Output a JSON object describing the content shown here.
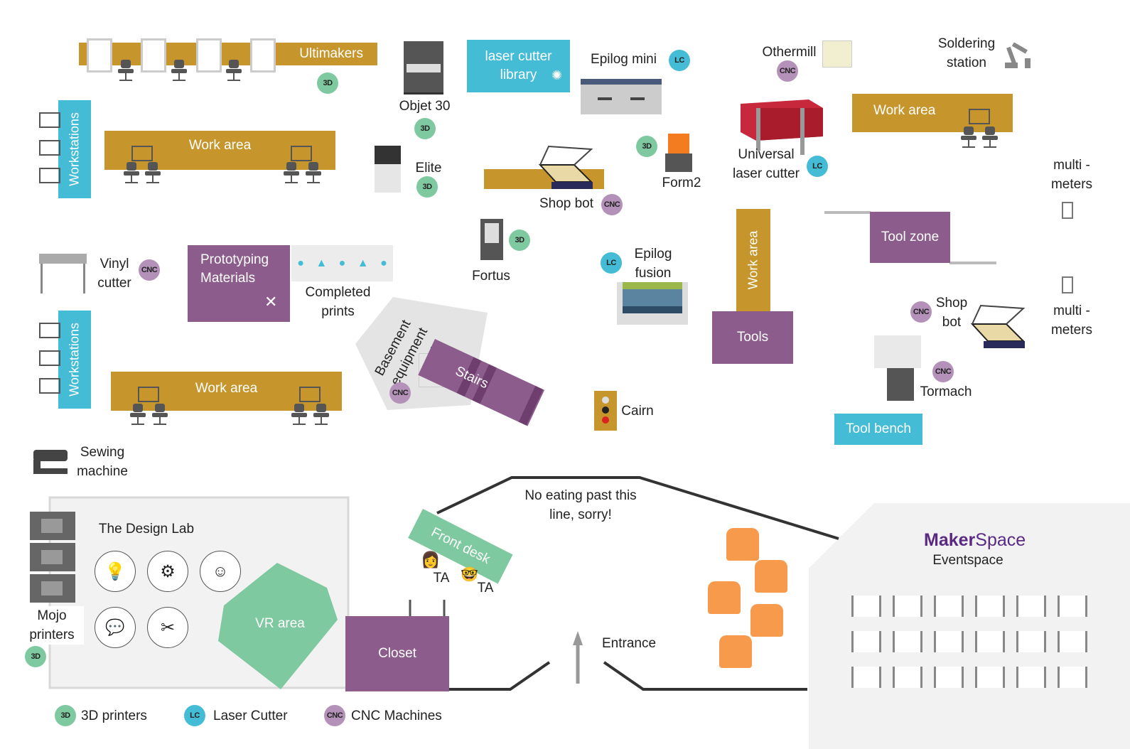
{
  "labels": {
    "ultimakers": "Ultimakers",
    "objet30": "Objet 30",
    "laser_cutter_library": "laser cutter library",
    "epilog_mini": "Epilog mini",
    "othermill": "Othermill",
    "soldering_station": "Soldering station",
    "workstations": "Workstations",
    "work_area": "Work area",
    "elite": "Elite",
    "shop_bot": "Shop bot",
    "form2": "Form2",
    "universal_laser_cutter": "Universal laser cutter",
    "multimeters": "multi - meters",
    "tool_zone": "Tool zone",
    "vinyl_cutter": "Vinyl cutter",
    "prototyping_materials": "Prototyping Materials",
    "completed_prints": "Completed prints",
    "fortus": "Fortus",
    "epilog_fusion": "Epilog fusion",
    "tools": "Tools",
    "basement_equipment": "Basement equipment",
    "stairs": "Stairs",
    "tormach": "Tormach",
    "cairn": "Cairn",
    "tool_bench": "Tool bench",
    "sewing_machine": "Sewing machine",
    "design_lab": "The Design Lab",
    "mojo_printers": "Mojo printers",
    "vr_area": "VR area",
    "front_desk": "Front desk",
    "ta": "TA",
    "no_eating": "No eating past this line, sorry!",
    "closet": "Closet",
    "entrance": "Entrance",
    "makerspace_maker": "Maker",
    "makerspace_space": "Space",
    "eventspace": "Eventspace"
  },
  "badges": {
    "threed": "3D",
    "lc": "LC",
    "cnc": "CNC"
  },
  "legend": {
    "threed": "3D printers",
    "lc": "Laser Cutter",
    "cnc": "CNC Machines"
  },
  "colors": {
    "work_area": "#c6962d",
    "purple_zone": "#8c5c8c",
    "cyan_zone": "#44bcd6",
    "green_zone": "#7ec9a0",
    "badge_3d": "#7ec9a0",
    "badge_lc": "#44bcd6",
    "badge_cnc": "#b491b8",
    "makerspace_brand": "#5a2a82"
  },
  "icons": [
    "chair-icon",
    "monitor-icon",
    "lightbulb-icon",
    "head-gear-icon",
    "people-icon",
    "chat-icon",
    "tools-icon",
    "sewing-machine-icon",
    "multimeter-icon",
    "robot-arm-icon",
    "printer-icon",
    "laser-cutter-icon",
    "shopbot-icon",
    "up-arrow-icon",
    "person-icon"
  ]
}
